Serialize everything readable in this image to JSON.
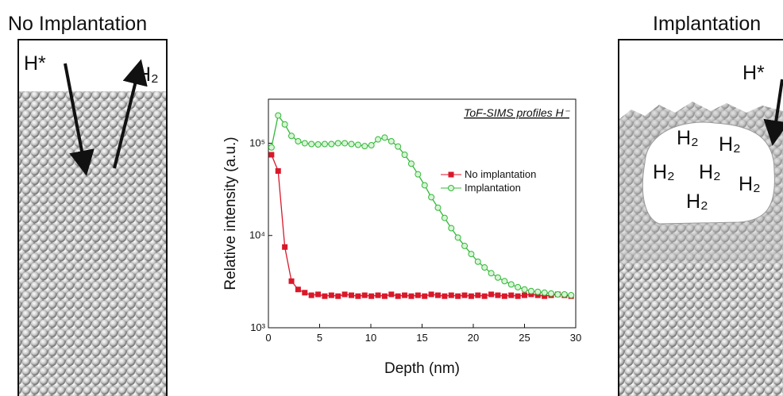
{
  "panels": [
    {
      "title": "No Implantation",
      "labels": [
        "H*",
        "H₂"
      ]
    },
    {
      "title": "Implantation",
      "labels": [
        "H*",
        "H₂",
        "H₂",
        "H₂",
        "H₂",
        "H₂",
        "H₂"
      ]
    }
  ],
  "chart_data": {
    "type": "line",
    "title": "ToF-SIMS profiles H⁻",
    "x_label": "Depth (nm)",
    "y_label": "Relative intensity (a.u.)",
    "log_y": true,
    "legend": "upper-right",
    "xlim": [
      0,
      30
    ],
    "xticks": [
      0,
      5,
      10,
      15,
      20,
      25,
      30
    ],
    "ylim": [
      1000,
      300000
    ],
    "yticks": [
      {
        "value": 1000,
        "label": "10³"
      },
      {
        "value": 10000,
        "label": "10⁴"
      },
      {
        "value": 100000,
        "label": "10⁵"
      }
    ],
    "x": [
      0.3,
      0.95,
      1.6,
      2.25,
      2.9,
      3.55,
      4.2,
      4.85,
      5.5,
      6.15,
      6.8,
      7.45,
      8.1,
      8.75,
      9.4,
      10.05,
      10.7,
      11.35,
      12.0,
      12.65,
      13.3,
      13.95,
      14.6,
      15.25,
      15.9,
      16.55,
      17.2,
      17.85,
      18.5,
      19.15,
      19.8,
      20.45,
      21.1,
      21.75,
      22.4,
      23.05,
      23.7,
      24.35,
      25.0,
      25.65,
      26.3,
      26.95,
      27.6,
      28.25,
      28.9,
      29.55
    ],
    "series": [
      {
        "name": "No implantation",
        "color": "#d9182a",
        "marker": "square",
        "values": [
          75000,
          50000,
          7500,
          3200,
          2600,
          2400,
          2250,
          2300,
          2200,
          2250,
          2200,
          2300,
          2250,
          2200,
          2250,
          2200,
          2250,
          2200,
          2300,
          2200,
          2250,
          2200,
          2250,
          2200,
          2300,
          2250,
          2200,
          2250,
          2200,
          2250,
          2200,
          2250,
          2200,
          2300,
          2250,
          2200,
          2250,
          2200,
          2250,
          2300,
          2250,
          2200,
          2250,
          2300,
          2250,
          2200
        ]
      },
      {
        "name": "Implantation",
        "color": "#33b83a",
        "marker": "circle",
        "values": [
          90000,
          200000,
          160000,
          120000,
          105000,
          100000,
          98000,
          97000,
          98000,
          98000,
          100000,
          100000,
          98000,
          96000,
          93000,
          95000,
          110000,
          115000,
          105000,
          92000,
          75000,
          60000,
          46000,
          35000,
          26000,
          20000,
          15500,
          12000,
          9500,
          7700,
          6300,
          5200,
          4500,
          3900,
          3500,
          3200,
          2950,
          2750,
          2600,
          2500,
          2450,
          2400,
          2350,
          2300,
          2300,
          2250
        ]
      }
    ]
  }
}
